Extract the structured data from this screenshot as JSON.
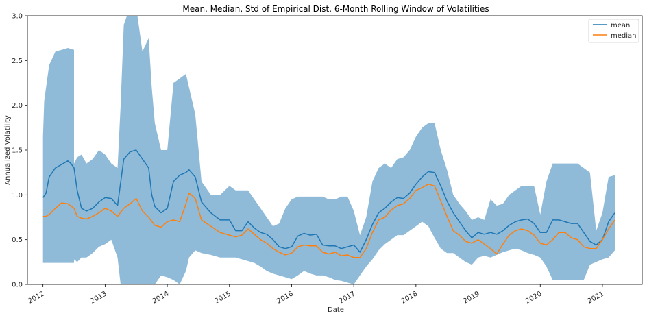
{
  "chart_data": {
    "type": "line",
    "title": "Mean, Median, Std of Empirical Dist. 6-Month Rolling Window of Volatilities",
    "xlabel": "Date",
    "ylabel": "Annualized Volatility",
    "ylim": [
      0,
      3.0
    ],
    "xlim": [
      2011.75,
      2021.64
    ],
    "y_ticks": [
      "0.0",
      "0.5",
      "1.0",
      "1.5",
      "2.0",
      "2.5",
      "3.0"
    ],
    "x_ticks": [
      "2012",
      "2013",
      "2014",
      "2015",
      "2016",
      "2017",
      "2018",
      "2019",
      "2020",
      "2021"
    ],
    "grid": false,
    "legend_position": "top-right",
    "colors": {
      "mean": "#1f77b4",
      "median": "#ff7f0e",
      "band": "#8fbbd9"
    },
    "series": [
      {
        "name": "mean",
        "x": [
          2012.0,
          2012.05,
          2012.1,
          2012.2,
          2012.3,
          2012.4,
          2012.45,
          2012.5,
          2012.55,
          2012.62,
          2012.7,
          2012.8,
          2012.9,
          2013.0,
          2013.1,
          2013.2,
          2013.3,
          2013.4,
          2013.5,
          2013.6,
          2013.7,
          2013.75,
          2013.8,
          2013.9,
          2014.0,
          2014.1,
          2014.2,
          2014.3,
          2014.35,
          2014.45,
          2014.55,
          2014.7,
          2014.85,
          2015.0,
          2015.1,
          2015.2,
          2015.3,
          2015.4,
          2015.5,
          2015.6,
          2015.7,
          2015.8,
          2015.9,
          2016.0,
          2016.1,
          2016.2,
          2016.3,
          2016.4,
          2016.5,
          2016.6,
          2016.7,
          2016.8,
          2016.9,
          2017.0,
          2017.1,
          2017.2,
          2017.3,
          2017.4,
          2017.5,
          2017.6,
          2017.7,
          2017.8,
          2017.9,
          2018.0,
          2018.1,
          2018.2,
          2018.3,
          2018.4,
          2018.5,
          2018.6,
          2018.7,
          2018.8,
          2018.9,
          2019.0,
          2019.1,
          2019.2,
          2019.3,
          2019.4,
          2019.5,
          2019.6,
          2019.7,
          2019.8,
          2019.9,
          2020.0,
          2020.1,
          2020.2,
          2020.3,
          2020.4,
          2020.5,
          2020.6,
          2020.7,
          2020.8,
          2020.9,
          2021.0,
          2021.1,
          2021.2
        ],
        "values": [
          0.97,
          1.02,
          1.2,
          1.3,
          1.34,
          1.38,
          1.35,
          1.3,
          1.05,
          0.85,
          0.82,
          0.85,
          0.92,
          0.97,
          0.96,
          0.88,
          1.4,
          1.48,
          1.5,
          1.4,
          1.3,
          1.0,
          0.87,
          0.8,
          0.85,
          1.15,
          1.22,
          1.25,
          1.28,
          1.2,
          0.92,
          0.8,
          0.72,
          0.72,
          0.6,
          0.6,
          0.7,
          0.63,
          0.58,
          0.56,
          0.5,
          0.42,
          0.4,
          0.42,
          0.54,
          0.57,
          0.55,
          0.56,
          0.44,
          0.43,
          0.43,
          0.4,
          0.42,
          0.44,
          0.36,
          0.5,
          0.67,
          0.8,
          0.85,
          0.92,
          0.97,
          0.96,
          1.02,
          1.12,
          1.2,
          1.26,
          1.25,
          1.1,
          0.93,
          0.8,
          0.7,
          0.6,
          0.52,
          0.58,
          0.56,
          0.58,
          0.56,
          0.6,
          0.66,
          0.7,
          0.72,
          0.73,
          0.68,
          0.58,
          0.58,
          0.72,
          0.72,
          0.7,
          0.68,
          0.68,
          0.58,
          0.48,
          0.44,
          0.5,
          0.7,
          0.8
        ]
      },
      {
        "name": "median",
        "x": [
          2012.0,
          2012.05,
          2012.1,
          2012.2,
          2012.3,
          2012.4,
          2012.5,
          2012.55,
          2012.62,
          2012.7,
          2012.8,
          2012.9,
          2013.0,
          2013.1,
          2013.2,
          2013.3,
          2013.4,
          2013.5,
          2013.6,
          2013.7,
          2013.8,
          2013.9,
          2014.0,
          2014.1,
          2014.2,
          2014.3,
          2014.35,
          2014.45,
          2014.55,
          2014.7,
          2014.85,
          2015.0,
          2015.1,
          2015.2,
          2015.3,
          2015.4,
          2015.5,
          2015.6,
          2015.7,
          2015.8,
          2015.9,
          2016.0,
          2016.1,
          2016.2,
          2016.3,
          2016.4,
          2016.5,
          2016.6,
          2016.7,
          2016.8,
          2016.9,
          2017.0,
          2017.1,
          2017.2,
          2017.3,
          2017.4,
          2017.5,
          2017.6,
          2017.7,
          2017.8,
          2017.9,
          2018.0,
          2018.1,
          2018.2,
          2018.3,
          2018.4,
          2018.5,
          2018.6,
          2018.7,
          2018.8,
          2018.9,
          2019.0,
          2019.1,
          2019.2,
          2019.3,
          2019.4,
          2019.5,
          2019.6,
          2019.7,
          2019.8,
          2019.9,
          2020.0,
          2020.1,
          2020.2,
          2020.3,
          2020.4,
          2020.5,
          2020.6,
          2020.7,
          2020.8,
          2020.9,
          2021.0,
          2021.1,
          2021.2
        ],
        "values": [
          0.76,
          0.76,
          0.78,
          0.85,
          0.91,
          0.9,
          0.85,
          0.76,
          0.74,
          0.73,
          0.76,
          0.8,
          0.85,
          0.82,
          0.76,
          0.85,
          0.9,
          0.96,
          0.82,
          0.75,
          0.66,
          0.64,
          0.7,
          0.72,
          0.7,
          0.9,
          1.02,
          0.96,
          0.72,
          0.65,
          0.58,
          0.55,
          0.53,
          0.55,
          0.62,
          0.56,
          0.5,
          0.46,
          0.4,
          0.36,
          0.33,
          0.35,
          0.42,
          0.44,
          0.43,
          0.43,
          0.36,
          0.34,
          0.36,
          0.32,
          0.33,
          0.3,
          0.3,
          0.4,
          0.58,
          0.72,
          0.75,
          0.83,
          0.88,
          0.9,
          0.96,
          1.05,
          1.08,
          1.12,
          1.1,
          0.93,
          0.76,
          0.6,
          0.55,
          0.48,
          0.46,
          0.5,
          0.45,
          0.4,
          0.34,
          0.45,
          0.55,
          0.6,
          0.62,
          0.6,
          0.55,
          0.46,
          0.44,
          0.5,
          0.58,
          0.58,
          0.52,
          0.5,
          0.42,
          0.4,
          0.4,
          0.5,
          0.62,
          0.72
        ]
      }
    ],
    "band": {
      "x": [
        2012.0,
        2012.02,
        2012.05,
        2012.1,
        2012.2,
        2012.3,
        2012.4,
        2012.5,
        2012.5,
        2012.55,
        2012.62,
        2012.7,
        2012.8,
        2012.9,
        2013.0,
        2013.1,
        2013.2,
        2013.25,
        2013.3,
        2013.4,
        2013.5,
        2013.6,
        2013.7,
        2013.75,
        2013.8,
        2013.9,
        2014.0,
        2014.1,
        2014.2,
        2014.3,
        2014.35,
        2014.45,
        2014.55,
        2014.7,
        2014.85,
        2015.0,
        2015.1,
        2015.2,
        2015.3,
        2015.4,
        2015.5,
        2015.6,
        2015.7,
        2015.8,
        2015.9,
        2016.0,
        2016.1,
        2016.2,
        2016.3,
        2016.4,
        2016.5,
        2016.6,
        2016.7,
        2016.8,
        2016.9,
        2017.0,
        2017.1,
        2017.2,
        2017.3,
        2017.4,
        2017.5,
        2017.6,
        2017.7,
        2017.8,
        2017.9,
        2018.0,
        2018.1,
        2018.2,
        2018.3,
        2018.4,
        2018.5,
        2018.6,
        2018.7,
        2018.8,
        2018.9,
        2019.0,
        2019.1,
        2019.2,
        2019.3,
        2019.4,
        2019.5,
        2019.6,
        2019.7,
        2019.8,
        2019.9,
        2020.0,
        2020.1,
        2020.2,
        2020.3,
        2020.4,
        2020.5,
        2020.6,
        2020.7,
        2020.8,
        2020.9,
        2021.0,
        2021.1,
        2021.2
      ],
      "upper": [
        1.65,
        2.05,
        2.2,
        2.45,
        2.6,
        2.62,
        2.64,
        2.62,
        1.35,
        1.42,
        1.45,
        1.35,
        1.4,
        1.5,
        1.45,
        1.35,
        1.3,
        2.0,
        2.9,
        3.1,
        3.1,
        2.6,
        2.75,
        2.2,
        1.8,
        1.5,
        1.5,
        2.25,
        2.3,
        2.35,
        2.2,
        1.9,
        1.15,
        1.0,
        1.0,
        1.1,
        1.05,
        1.05,
        1.05,
        0.95,
        0.85,
        0.75,
        0.65,
        0.68,
        0.85,
        0.95,
        0.98,
        0.98,
        0.98,
        0.98,
        0.98,
        0.95,
        0.95,
        0.98,
        0.98,
        0.82,
        0.55,
        0.75,
        1.15,
        1.3,
        1.35,
        1.3,
        1.4,
        1.42,
        1.5,
        1.65,
        1.75,
        1.8,
        1.8,
        1.5,
        1.28,
        1.0,
        0.9,
        0.82,
        0.72,
        0.75,
        0.72,
        0.95,
        0.88,
        0.9,
        1.0,
        1.05,
        1.1,
        1.1,
        1.1,
        0.78,
        1.15,
        1.35,
        1.35,
        1.35,
        1.35,
        1.35,
        1.3,
        1.25,
        0.6,
        0.8,
        1.2,
        1.22
      ],
      "lower": [
        0.24,
        0.24,
        0.24,
        0.24,
        0.24,
        0.24,
        0.24,
        0.24,
        0.28,
        0.25,
        0.3,
        0.3,
        0.35,
        0.42,
        0.45,
        0.5,
        0.3,
        0.0,
        0.0,
        0.0,
        0.0,
        0.0,
        0.0,
        0.0,
        0.0,
        0.1,
        0.08,
        0.05,
        0.0,
        0.15,
        0.3,
        0.38,
        0.35,
        0.33,
        0.3,
        0.3,
        0.3,
        0.28,
        0.26,
        0.24,
        0.2,
        0.15,
        0.12,
        0.1,
        0.08,
        0.06,
        0.1,
        0.15,
        0.12,
        0.1,
        0.1,
        0.08,
        0.05,
        0.04,
        0.02,
        0.0,
        0.1,
        0.2,
        0.28,
        0.38,
        0.45,
        0.5,
        0.55,
        0.55,
        0.6,
        0.65,
        0.7,
        0.65,
        0.52,
        0.4,
        0.35,
        0.35,
        0.3,
        0.25,
        0.22,
        0.3,
        0.32,
        0.3,
        0.33,
        0.36,
        0.38,
        0.4,
        0.38,
        0.35,
        0.33,
        0.3,
        0.2,
        0.05,
        0.05,
        0.05,
        0.05,
        0.05,
        0.05,
        0.22,
        0.25,
        0.28,
        0.3,
        0.38
      ]
    }
  }
}
